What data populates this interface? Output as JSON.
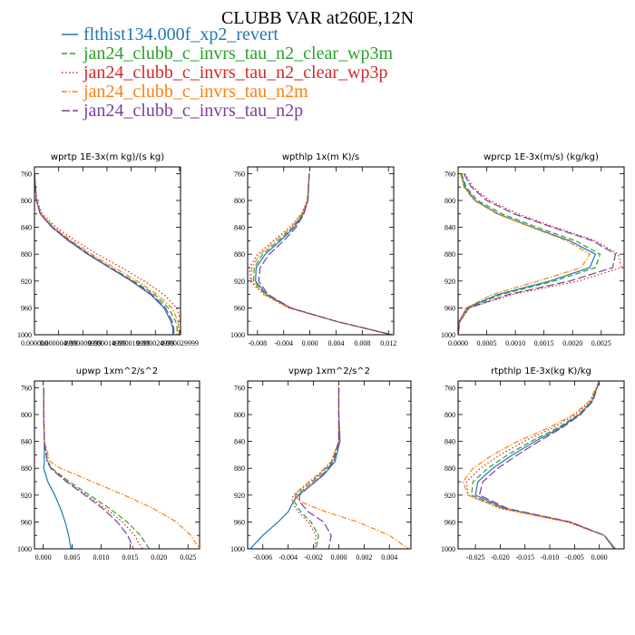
{
  "title": "CLUBB VAR at260E,12N",
  "legend": [
    {
      "name": "flthist134.000f_xp2_revert",
      "color": "#1f77b4",
      "dash": "solid"
    },
    {
      "name": "jan24_clubb_c_invrs_tau_n2_clear_wp3m",
      "color": "#2ca02c",
      "dash": "dash"
    },
    {
      "name": "jan24_clubb_c_invrs_tau_n2_clear_wp3p",
      "color": "#d62728",
      "dash": "dot"
    },
    {
      "name": "jan24_clubb_c_invrs_tau_n2m",
      "color": "#ff7f0e",
      "dash": "dashdot"
    },
    {
      "name": "jan24_clubb_c_invrs_tau_n2p",
      "color": "#7b3f9e",
      "dash": "longdash"
    }
  ],
  "chart_data": [
    {
      "type": "line",
      "title": "wprtp  1E-3x(m kg)/(s kg)",
      "xlim": [
        0.0,
        3.02e-05
      ],
      "ylim": [
        1000,
        750
      ],
      "xticks": [
        0.0,
        5e-06,
        1e-05,
        1.5e-05,
        2e-05,
        2.5e-05,
        3e-05
      ],
      "xtick_labels": [
        "0.000000",
        "0.000004999",
        "0.000009999",
        "0.000014999",
        "0.000019999",
        "0.000024999",
        "0.000029999"
      ],
      "yticks": [
        760,
        800,
        840,
        880,
        920,
        960,
        1000
      ],
      "y": [
        760,
        780,
        800,
        820,
        840,
        860,
        880,
        900,
        920,
        940,
        960,
        980,
        990,
        1000
      ],
      "series": [
        {
          "values": [
            0.0,
            2e-07,
            4e-07,
            1.2e-06,
            3.6e-06,
            7e-06,
            1.1e-05,
            1.55e-05,
            2e-05,
            2.4e-05,
            2.68e-05,
            2.82e-05,
            2.86e-05,
            2.86e-05
          ]
        },
        {
          "values": [
            0.0,
            2e-07,
            4e-07,
            1.3e-06,
            3.8e-06,
            7.3e-06,
            1.13e-05,
            1.58e-05,
            2.05e-05,
            2.48e-05,
            2.77e-05,
            2.92e-05,
            2.95e-05,
            2.94e-05
          ]
        },
        {
          "values": [
            0.0,
            2e-07,
            5e-07,
            1.6e-06,
            4.5e-06,
            8.5e-06,
            1.3e-05,
            1.8e-05,
            2.27e-05,
            2.68e-05,
            2.94e-05,
            3.03e-05,
            3.02e-05,
            3e-05
          ]
        },
        {
          "values": [
            0.0,
            2e-07,
            4e-07,
            1.4e-06,
            4e-06,
            7.7e-06,
            1.18e-05,
            1.65e-05,
            2.12e-05,
            2.54e-05,
            2.84e-05,
            2.97e-05,
            2.98e-05,
            2.97e-05
          ]
        },
        {
          "values": [
            0.0,
            2e-07,
            4e-07,
            1.2e-06,
            3.7e-06,
            7.2e-06,
            1.11e-05,
            1.56e-05,
            2.02e-05,
            2.43e-05,
            2.71e-05,
            2.85e-05,
            2.88e-05,
            2.88e-05
          ]
        }
      ]
    },
    {
      "type": "line",
      "title": "wpthlp  1x(m K)/s",
      "xlim": [
        -0.0095,
        0.0128
      ],
      "ylim": [
        1000,
        750
      ],
      "xticks": [
        -0.008,
        -0.004,
        0.0,
        0.004,
        0.008,
        0.012
      ],
      "xtick_labels": [
        "-0.008",
        "-0.004",
        "0.000",
        "0.004",
        "0.008",
        "0.012"
      ],
      "yticks": [
        760,
        800,
        840,
        880,
        920,
        960,
        1000
      ],
      "y": [
        760,
        800,
        820,
        840,
        860,
        880,
        900,
        920,
        940,
        960,
        980,
        1000
      ],
      "series": [
        {
          "values": [
            -0.0001,
            -0.0003,
            -0.001,
            -0.0024,
            -0.0045,
            -0.0068,
            -0.0082,
            -0.0083,
            -0.0066,
            -0.003,
            0.004,
            0.0125
          ]
        },
        {
          "values": [
            -0.0001,
            -0.0003,
            -0.0011,
            -0.0026,
            -0.0048,
            -0.0072,
            -0.0085,
            -0.0086,
            -0.0068,
            -0.0031,
            0.004,
            0.0125
          ]
        },
        {
          "values": [
            -0.0001,
            -0.0004,
            -0.0013,
            -0.0031,
            -0.0056,
            -0.008,
            -0.0092,
            -0.0091,
            -0.0071,
            -0.0032,
            0.004,
            0.0125
          ]
        },
        {
          "values": [
            -0.0001,
            -0.0004,
            -0.0012,
            -0.0028,
            -0.0052,
            -0.0076,
            -0.0089,
            -0.0089,
            -0.007,
            -0.0032,
            0.004,
            0.0125
          ]
        },
        {
          "values": [
            -0.0001,
            -0.0003,
            -0.0009,
            -0.0021,
            -0.004,
            -0.0062,
            -0.0076,
            -0.0078,
            -0.0064,
            -0.0029,
            0.004,
            0.0125
          ]
        }
      ]
    },
    {
      "type": "line",
      "title": "wprcp  1E-3x(m/s) (kg/kg)",
      "xlim": [
        0.0,
        0.0029
      ],
      "ylim": [
        1000,
        750
      ],
      "xticks": [
        0.0,
        0.0005,
        0.001,
        0.0015,
        0.002,
        0.0025
      ],
      "xtick_labels": [
        "0.0000",
        "0.0005",
        "0.0010",
        "0.0015",
        "0.0020",
        "0.0025"
      ],
      "yticks": [
        760,
        800,
        840,
        880,
        920,
        960,
        1000
      ],
      "y": [
        760,
        780,
        800,
        820,
        840,
        860,
        880,
        900,
        920,
        940,
        960,
        980,
        1000
      ],
      "series": [
        {
          "values": [
            5e-05,
            0.00012,
            0.0003,
            0.0007,
            0.0013,
            0.00195,
            0.0024,
            0.0023,
            0.0016,
            0.0007,
            0.00015,
            2e-05,
            0.0
          ]
        },
        {
          "values": [
            6e-05,
            0.00014,
            0.00034,
            0.00077,
            0.00138,
            0.00205,
            0.00248,
            0.0024,
            0.00168,
            0.00075,
            0.00017,
            2e-05,
            0.0
          ]
        },
        {
          "values": [
            0.00012,
            0.00026,
            0.00055,
            0.00105,
            0.0017,
            0.0024,
            0.0028,
            0.00285,
            0.0021,
            0.00095,
            0.0002,
            3e-05,
            0.0
          ]
        },
        {
          "values": [
            4e-05,
            0.0001,
            0.00028,
            0.00068,
            0.00128,
            0.0019,
            0.0023,
            0.00215,
            0.0014,
            0.0006,
            0.00014,
            2e-05,
            0.0
          ]
        },
        {
          "values": [
            0.0001,
            0.00023,
            0.0005,
            0.00098,
            0.00165,
            0.00235,
            0.00275,
            0.0027,
            0.00195,
            0.00088,
            0.00019,
            3e-05,
            0.0
          ]
        }
      ]
    },
    {
      "type": "line",
      "title": "upwp  1xm^2/s^2",
      "xlim": [
        -0.0015,
        0.027
      ],
      "ylim": [
        1000,
        750
      ],
      "xticks": [
        0.0,
        0.005,
        0.01,
        0.015,
        0.02,
        0.025
      ],
      "xtick_labels": [
        "0.000",
        "0.005",
        "0.010",
        "0.015",
        "0.020",
        "0.025"
      ],
      "yticks": [
        760,
        800,
        840,
        880,
        920,
        960,
        1000
      ],
      "y": [
        760,
        800,
        840,
        870,
        880,
        900,
        920,
        940,
        960,
        980,
        1000
      ],
      "series": [
        {
          "values": [
            0.0001,
            0.0001,
            0.0002,
            0.0002,
            0.0001,
            0.0008,
            0.002,
            0.003,
            0.0038,
            0.0044,
            0.0048
          ]
        },
        {
          "values": [
            0.0001,
            0.0001,
            0.0002,
            0.0008,
            0.0015,
            0.0045,
            0.008,
            0.0115,
            0.0145,
            0.0168,
            0.0183
          ]
        },
        {
          "values": [
            0.0001,
            0.0001,
            0.0002,
            0.0007,
            0.0014,
            0.0042,
            0.0075,
            0.0108,
            0.0137,
            0.0158,
            0.0171
          ]
        },
        {
          "values": [
            0.0001,
            0.0001,
            0.0002,
            0.0012,
            0.003,
            0.0085,
            0.014,
            0.019,
            0.023,
            0.0255,
            0.027
          ]
        },
        {
          "values": [
            0.0001,
            0.0001,
            0.0002,
            0.0007,
            0.0013,
            0.004,
            0.0072,
            0.0103,
            0.0128,
            0.0146,
            0.0156
          ]
        }
      ]
    },
    {
      "type": "line",
      "title": "vpwp  1xm^2/s^2",
      "xlim": [
        -0.0072,
        0.0057
      ],
      "ylim": [
        1000,
        750
      ],
      "xticks": [
        -0.006,
        -0.004,
        -0.002,
        0.0,
        0.002,
        0.004
      ],
      "xtick_labels": [
        "-0.006",
        "-0.004",
        "-0.002",
        "0.000",
        "0.002",
        "0.004"
      ],
      "yticks": [
        760,
        800,
        840,
        880,
        920,
        960,
        1000
      ],
      "y": [
        760,
        800,
        840,
        870,
        890,
        910,
        920,
        930,
        945,
        960,
        980,
        1000
      ],
      "series": [
        {
          "values": [
            0.0,
            0.0,
            0.0001,
            -0.0003,
            -0.0012,
            -0.0025,
            -0.0032,
            -0.0036,
            -0.004,
            -0.0048,
            -0.006,
            -0.007
          ]
        },
        {
          "values": [
            0.0,
            0.0,
            0.0,
            -0.0005,
            -0.0015,
            -0.0027,
            -0.0034,
            -0.0035,
            -0.003,
            -0.0022,
            -0.0016,
            -0.0018
          ]
        },
        {
          "values": [
            0.0,
            0.0,
            0.0,
            -0.0006,
            -0.0016,
            -0.0029,
            -0.0036,
            -0.0037,
            -0.0032,
            -0.0024,
            -0.0018,
            -0.0019
          ]
        },
        {
          "values": [
            0.0,
            0.0,
            0.0,
            -0.0006,
            -0.0017,
            -0.003,
            -0.0035,
            -0.003,
            -0.001,
            0.0015,
            0.004,
            0.0055
          ]
        },
        {
          "values": [
            0.0,
            0.0,
            0.0,
            -0.0004,
            -0.0013,
            -0.0025,
            -0.0031,
            -0.0031,
            -0.0024,
            -0.0012,
            -0.0006,
            -0.0008
          ]
        }
      ]
    },
    {
      "type": "line",
      "title": "rtpthlp  1E-3x(kg K)/kg",
      "xlim": [
        -0.0285,
        0.005
      ],
      "ylim": [
        1000,
        750
      ],
      "xticks": [
        -0.025,
        -0.02,
        -0.015,
        -0.01,
        -0.005,
        0.0
      ],
      "xtick_labels": [
        "-0.025",
        "-0.020",
        "-0.015",
        "-0.010",
        "-0.005",
        "0.000"
      ],
      "yticks": [
        760,
        800,
        840,
        880,
        920,
        960,
        1000
      ],
      "y": [
        750,
        780,
        800,
        820,
        840,
        860,
        880,
        900,
        920,
        940,
        960,
        980,
        1000
      ],
      "series": [
        {
          "values": [
            0.0,
            -0.0015,
            -0.004,
            -0.008,
            -0.013,
            -0.0175,
            -0.0215,
            -0.0245,
            -0.025,
            -0.019,
            -0.006,
            0.001,
            0.003
          ]
        },
        {
          "values": [
            0.0,
            -0.0015,
            -0.0042,
            -0.0085,
            -0.0138,
            -0.0185,
            -0.0225,
            -0.0255,
            -0.0258,
            -0.0195,
            -0.0062,
            0.001,
            0.0032
          ]
        },
        {
          "values": [
            0.0,
            -0.0018,
            -0.0048,
            -0.0095,
            -0.0152,
            -0.02,
            -0.024,
            -0.0268,
            -0.0265,
            -0.02,
            -0.0065,
            0.001,
            0.0033
          ]
        },
        {
          "values": [
            0.0,
            -0.002,
            -0.0052,
            -0.0103,
            -0.0165,
            -0.0215,
            -0.0255,
            -0.0275,
            -0.0265,
            -0.0195,
            -0.0062,
            0.001,
            0.0033
          ]
        },
        {
          "values": [
            0.0,
            -0.0013,
            -0.0038,
            -0.0076,
            -0.0122,
            -0.0165,
            -0.0205,
            -0.0235,
            -0.0242,
            -0.0185,
            -0.0058,
            0.001,
            0.003
          ]
        }
      ]
    }
  ]
}
